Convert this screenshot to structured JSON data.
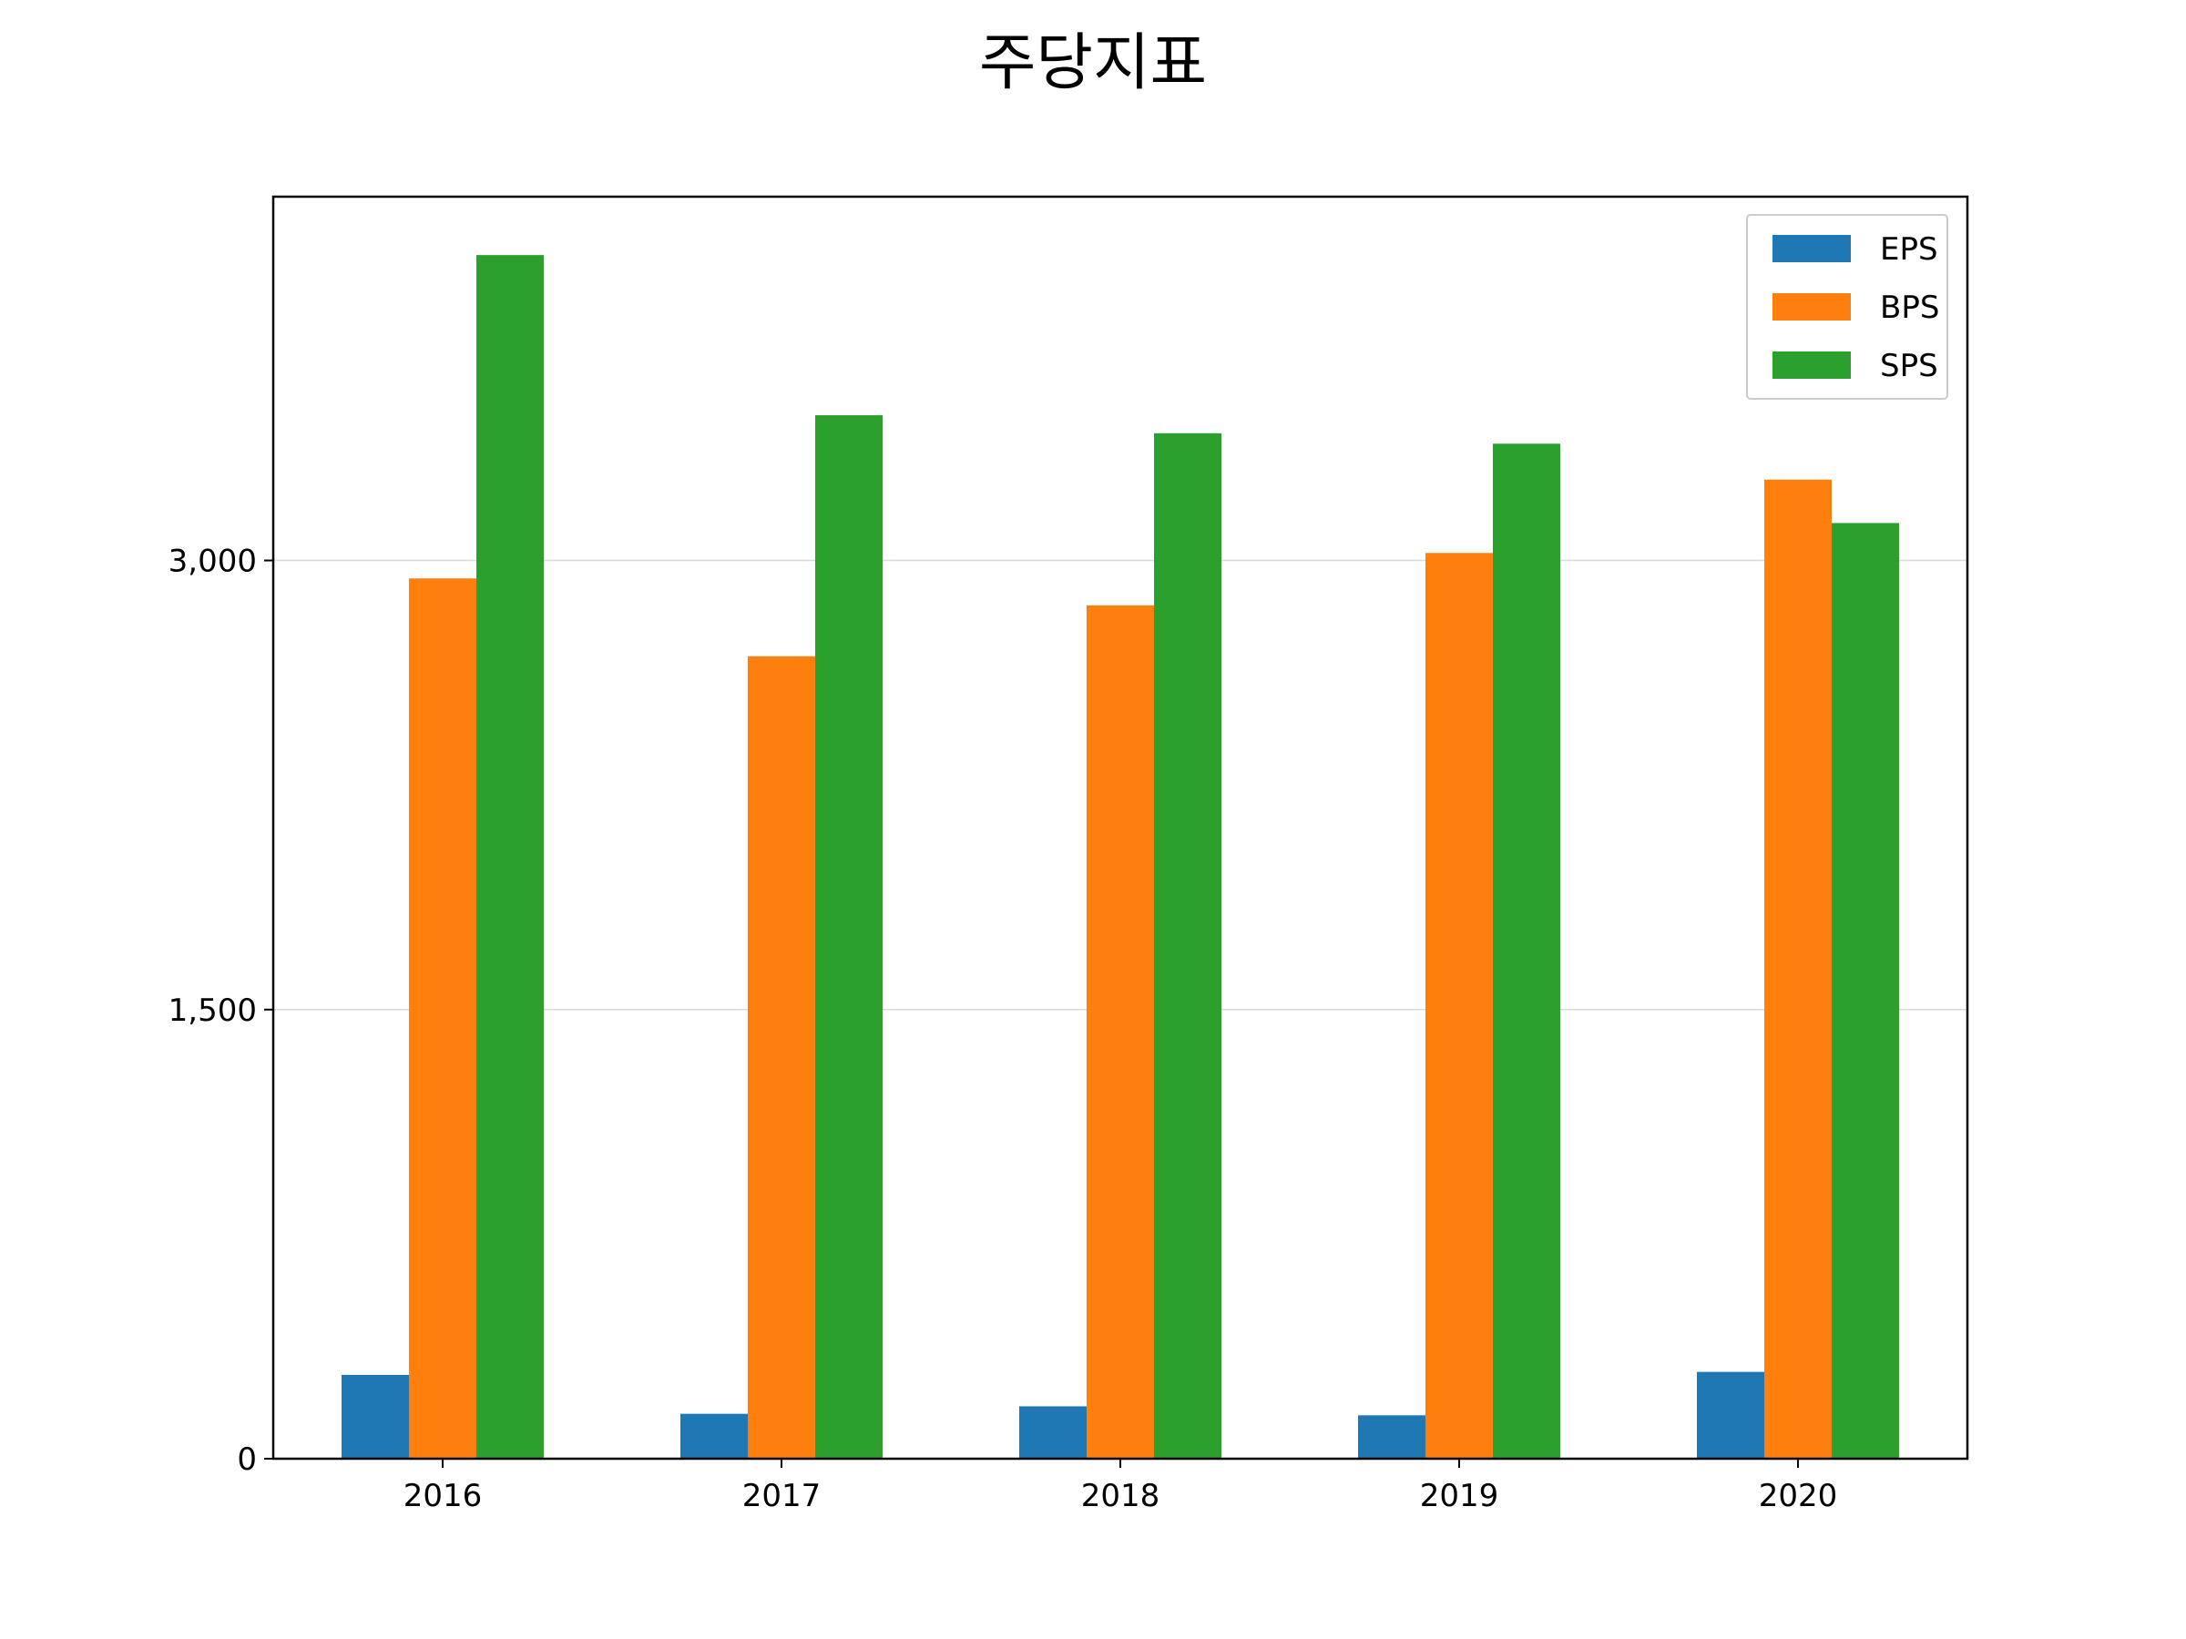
{
  "chart_data": {
    "type": "bar",
    "title": "주당지표",
    "xlabel": "",
    "ylabel": "",
    "categories": [
      "2016",
      "2017",
      "2018",
      "2019",
      "2020"
    ],
    "series": [
      {
        "name": "EPS",
        "color": "#1f77b4",
        "values": [
          280,
          150,
          175,
          145,
          290
        ]
      },
      {
        "name": "BPS",
        "color": "#ff7f0e",
        "values": [
          2940,
          2680,
          2850,
          3025,
          3270
        ]
      },
      {
        "name": "SPS",
        "color": "#2ca02c",
        "values": [
          4020,
          3485,
          3425,
          3390,
          3125
        ]
      }
    ],
    "yticks": [
      0,
      1500,
      3000
    ],
    "ytick_labels": [
      "0",
      "1,500",
      "3,000"
    ],
    "ylim": [
      0,
      4215
    ],
    "grid": {
      "y": true,
      "x": false
    },
    "legend": {
      "position": "top-right"
    }
  }
}
